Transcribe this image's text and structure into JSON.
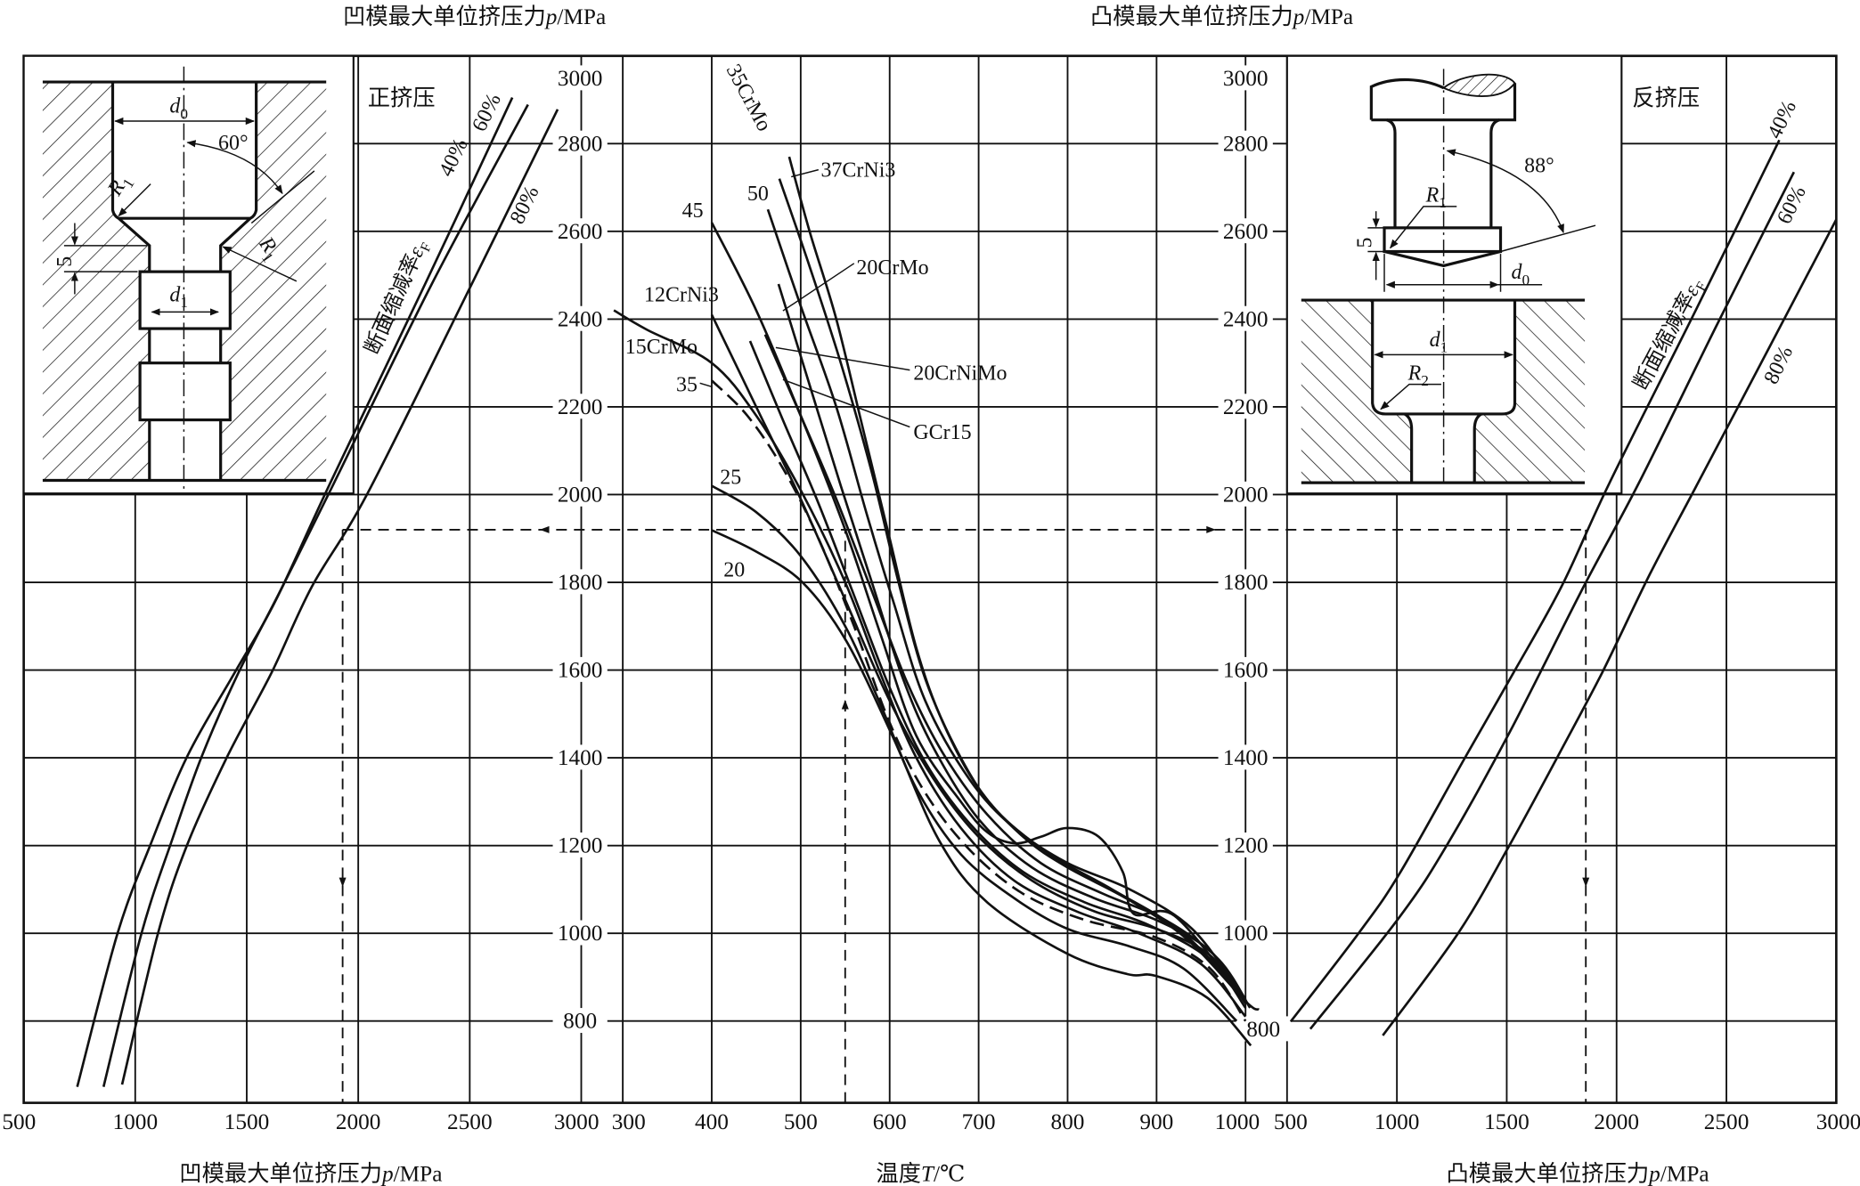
{
  "titles": {
    "top_left": {
      "text": "凹模最大单位挤压力",
      "var": "p",
      "unit": "/MPa"
    },
    "top_right": {
      "text": "凸模最大单位挤压力",
      "var": "p",
      "unit": "/MPa"
    },
    "bottom_left": {
      "text": "凹模最大单位挤压力",
      "var": "p",
      "unit": "/MPa"
    },
    "bottom_mid": {
      "text": "温度",
      "var": "T",
      "unit": "/℃"
    },
    "bottom_right": {
      "text": "凸模最大单位挤压力",
      "var": "p",
      "unit": "/MPa"
    }
  },
  "panels": {
    "forward": {
      "label": "正挤压",
      "ratio_title": "断面缩减率",
      "ratio_sym": "ε",
      "ratio_sub": "F"
    },
    "backward": {
      "label": "反挤压",
      "ratio_title": "断面缩减率",
      "ratio_sym": "ε",
      "ratio_sub": "F"
    }
  },
  "insets": {
    "forward": {
      "d0": {
        "base": "d",
        "sub": "0"
      },
      "d1": {
        "base": "d",
        "sub": "1"
      },
      "r1a": {
        "base": "R",
        "sub": "1"
      },
      "r1b": {
        "base": "R",
        "sub": "1"
      },
      "angle": "60°",
      "dim5": "5"
    },
    "backward": {
      "d0": {
        "base": "d",
        "sub": "0"
      },
      "d1": {
        "base": "d",
        "sub": "1"
      },
      "r1": {
        "base": "R",
        "sub": "1"
      },
      "r2": {
        "base": "R",
        "sub": "2"
      },
      "angle": "88°",
      "dim5": "5"
    }
  },
  "chart_data": [
    {
      "type": "line",
      "title": "凹模最大单位挤压力 (正挤压)",
      "xlabel": "凹模最大单位挤压力p/MPa",
      "ylabel": "凹模最大单位挤压力p/MPa",
      "xlim": [
        500,
        3000
      ],
      "ylim": [
        614,
        3000
      ],
      "xticks": [
        "500",
        "1000",
        "1500",
        "2000",
        "2500",
        "3000"
      ],
      "grid": true,
      "series": [
        {
          "name": "40%",
          "points": [
            [
              740,
              650
            ],
            [
              921,
              1000
            ],
            [
              1069,
              1203
            ],
            [
              1234,
              1404
            ],
            [
              1447,
              1595
            ],
            [
              1628,
              1757
            ],
            [
              1875,
              2027
            ],
            [
              2300,
              2480
            ],
            [
              2691,
              2905
            ]
          ]
        },
        {
          "name": "60%",
          "points": [
            [
              858,
              650
            ],
            [
              1028,
              1000
            ],
            [
              1168,
              1217
            ],
            [
              1299,
              1404
            ],
            [
              1464,
              1595
            ],
            [
              1661,
              1791
            ],
            [
              1892,
              2027
            ],
            [
              2330,
              2480
            ],
            [
              2761,
              2889
            ]
          ]
        },
        {
          "name": "80%",
          "points": [
            [
              941,
              655
            ],
            [
              1102,
              1000
            ],
            [
              1234,
              1203
            ],
            [
              1414,
              1404
            ],
            [
              1612,
              1595
            ],
            [
              1793,
              1791
            ],
            [
              2039,
              2000
            ],
            [
              2470,
              2440
            ],
            [
              2894,
              2878
            ]
          ]
        }
      ]
    },
    {
      "type": "line",
      "title": "温度-挤压力",
      "xlabel": "温度T/℃",
      "ylabel": "p/MPa",
      "xlim": [
        300,
        1000
      ],
      "ylim": [
        614,
        3000
      ],
      "xticks": [
        "300",
        "400",
        "500",
        "600",
        "700",
        "800",
        "900",
        "1000"
      ],
      "yticks": [
        "3000",
        "2800",
        "2600",
        "2400",
        "2200",
        "2000",
        "1800",
        "1600",
        "1400",
        "1200",
        "1000",
        "800"
      ],
      "grid": true,
      "series": [
        {
          "name": "35CrMo",
          "points": [
            [
              487,
              2770
            ],
            [
              510,
              2600
            ],
            [
              540,
              2400
            ],
            [
              570,
              2150
            ],
            [
              600,
              1900
            ],
            [
              630,
              1650
            ],
            [
              660,
              1480
            ],
            [
              700,
              1330
            ],
            [
              750,
              1220
            ],
            [
              800,
              1150
            ],
            [
              870,
              1075
            ],
            [
              935,
              985
            ],
            [
              1000,
              845
            ],
            [
              1015,
              826
            ]
          ]
        },
        {
          "name": "37CrNi3",
          "points": [
            [
              476,
              2720
            ],
            [
              510,
              2520
            ],
            [
              545,
              2300
            ],
            [
              580,
              2050
            ],
            [
              610,
              1800
            ],
            [
              640,
              1580
            ],
            [
              680,
              1400
            ],
            [
              720,
              1280
            ],
            [
              780,
              1180
            ],
            [
              850,
              1100
            ],
            [
              930,
              1000
            ],
            [
              1000,
              850
            ]
          ]
        },
        {
          "name": "50",
          "points": [
            [
              463,
              2650
            ],
            [
              500,
              2430
            ],
            [
              540,
              2200
            ],
            [
              575,
              1950
            ],
            [
              605,
              1750
            ],
            [
              640,
              1530
            ],
            [
              690,
              1350
            ],
            [
              740,
              1240
            ],
            [
              800,
              1160
            ],
            [
              870,
              1100
            ],
            [
              940,
              1010
            ],
            [
              995,
              860
            ]
          ]
        },
        {
          "name": "45",
          "points": [
            [
              400,
              2620
            ],
            [
              450,
              2420
            ],
            [
              500,
              2180
            ],
            [
              550,
              1920
            ],
            [
              590,
              1680
            ],
            [
              630,
              1450
            ],
            [
              680,
              1300
            ],
            [
              710,
              1230
            ],
            [
              740,
              1205
            ],
            [
              770,
              1220
            ],
            [
              800,
              1240
            ],
            [
              835,
              1220
            ],
            [
              862,
              1140
            ],
            [
              874,
              1045
            ],
            [
              920,
              1040
            ],
            [
              990,
              870
            ]
          ]
        },
        {
          "name": "20CrMo",
          "points": [
            [
              475,
              2480
            ],
            [
              510,
              2250
            ],
            [
              545,
              2020
            ],
            [
              580,
              1800
            ],
            [
              615,
              1580
            ],
            [
              650,
              1420
            ],
            [
              700,
              1260
            ],
            [
              760,
              1150
            ],
            [
              830,
              1080
            ],
            [
              900,
              1030
            ],
            [
              960,
              960
            ],
            [
              1000,
              850
            ]
          ]
        },
        {
          "name": "12CrNi3",
          "points": [
            [
              400,
              2410
            ],
            [
              450,
              2200
            ],
            [
              500,
              1990
            ],
            [
              550,
              1760
            ],
            [
              600,
              1530
            ],
            [
              650,
              1350
            ],
            [
              700,
              1220
            ],
            [
              760,
              1120
            ],
            [
              830,
              1050
            ],
            [
              900,
              1010
            ],
            [
              960,
              950
            ],
            [
              1000,
              840
            ]
          ]
        },
        {
          "name": "15CrMo",
          "points": [
            [
              290,
              2420
            ],
            [
              327,
              2376
            ],
            [
              400,
              2300
            ],
            [
              450,
              2180
            ],
            [
              500,
              2010
            ],
            [
              550,
              1800
            ],
            [
              590,
              1590
            ],
            [
              630,
              1400
            ],
            [
              680,
              1240
            ],
            [
              740,
              1120
            ],
            [
              810,
              1050
            ],
            [
              880,
              1000
            ],
            [
              950,
              930
            ],
            [
              1000,
              810
            ]
          ]
        },
        {
          "name": "20CrNiMo",
          "points": [
            [
              460,
              2365
            ],
            [
              500,
              2180
            ],
            [
              540,
              1990
            ],
            [
              580,
              1780
            ],
            [
              620,
              1570
            ],
            [
              660,
              1410
            ],
            [
              710,
              1270
            ],
            [
              770,
              1160
            ],
            [
              840,
              1090
            ],
            [
              910,
              1030
            ],
            [
              970,
              940
            ],
            [
              1005,
              830
            ]
          ]
        },
        {
          "name": "GCr15",
          "points": [
            [
              443,
              2350
            ],
            [
              480,
              2170
            ],
            [
              520,
              1980
            ],
            [
              560,
              1770
            ],
            [
              600,
              1560
            ],
            [
              640,
              1390
            ],
            [
              690,
              1250
            ],
            [
              750,
              1140
            ],
            [
              820,
              1070
            ],
            [
              890,
              1020
            ],
            [
              960,
              940
            ],
            [
              1000,
              830
            ]
          ]
        },
        {
          "name": "35",
          "dashed": true,
          "points": [
            [
              400,
              2260
            ],
            [
              440,
              2180
            ],
            [
              480,
              2060
            ],
            [
              520,
              1900
            ],
            [
              560,
              1700
            ],
            [
              600,
              1480
            ],
            [
              640,
              1320
            ],
            [
              690,
              1190
            ],
            [
              750,
              1090
            ],
            [
              820,
              1030
            ],
            [
              900,
              990
            ],
            [
              960,
              920
            ],
            [
              1000,
              800
            ]
          ]
        },
        {
          "name": "25",
          "points": [
            [
              400,
              2020
            ],
            [
              450,
              1960
            ],
            [
              500,
              1860
            ],
            [
              550,
              1700
            ],
            [
              590,
              1520
            ],
            [
              630,
              1330
            ],
            [
              680,
              1180
            ],
            [
              740,
              1080
            ],
            [
              800,
              1010
            ],
            [
              870,
              970
            ],
            [
              930,
              920
            ],
            [
              990,
              800
            ]
          ]
        },
        {
          "name": "20",
          "points": [
            [
              400,
              1919
            ],
            [
              450,
              1870
            ],
            [
              502,
              1800
            ],
            [
              551,
              1667
            ],
            [
              603,
              1450
            ],
            [
              656,
              1210
            ],
            [
              710,
              1070
            ],
            [
              800,
              953
            ],
            [
              867,
              907
            ],
            [
              899,
              903
            ],
            [
              957,
              853
            ],
            [
              1006,
              744
            ]
          ]
        }
      ]
    },
    {
      "type": "line",
      "title": "凸模最大单位挤压力 (反挤压)",
      "xlabel": "凸模最大单位挤压力p/MPa",
      "ylabel": "凸模最大单位挤压力p/MPa",
      "xlim": [
        500,
        3000
      ],
      "ylim": [
        614,
        3000
      ],
      "xticks": [
        "500",
        "1000",
        "1500",
        "2000",
        "2500",
        "3000"
      ],
      "grid": true,
      "series": [
        {
          "name": "40%",
          "points": [
            [
              517,
              799
            ],
            [
              827,
              1001
            ],
            [
              1012,
              1136
            ],
            [
              1314,
              1404
            ],
            [
              1532,
              1595
            ],
            [
              1750,
              1791
            ],
            [
              1968,
              2027
            ],
            [
              2360,
              2420
            ],
            [
              2741,
              2808
            ]
          ]
        },
        {
          "name": "60%",
          "points": [
            [
              606,
              782
            ],
            [
              1012,
              1037
            ],
            [
              1230,
              1203
            ],
            [
              1515,
              1460
            ],
            [
              1851,
              1791
            ],
            [
              2102,
              2027
            ],
            [
              2450,
              2380
            ],
            [
              2807,
              2735
            ]
          ]
        },
        {
          "name": "80%",
          "points": [
            [
              936,
              767
            ],
            [
              1280,
              1001
            ],
            [
              1515,
              1203
            ],
            [
              1733,
              1404
            ],
            [
              1935,
              1595
            ],
            [
              2153,
              1820
            ],
            [
              2371,
              2027
            ],
            [
              2700,
              2340
            ],
            [
              3000,
              2627
            ]
          ]
        }
      ]
    }
  ],
  "example": {
    "temperature": 550,
    "pressure": 1920,
    "die_pressure": 1930,
    "punch_pressure": 1860
  }
}
